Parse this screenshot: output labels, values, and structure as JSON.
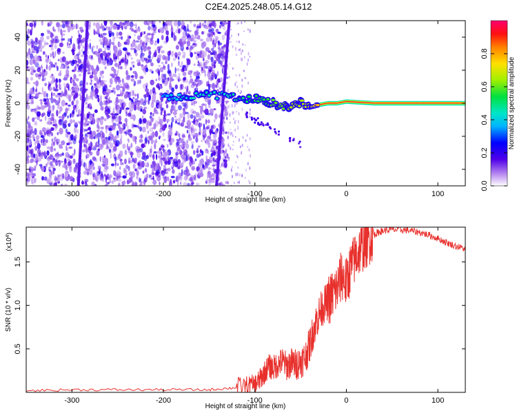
{
  "title": "C2E4.2025.248.05.14.G12",
  "chart_data": [
    {
      "type": "heatmap",
      "name": "spectrogram",
      "xlabel": "Height of straight line (km)",
      "ylabel": "Frequency (Hz)",
      "xlim": [
        -350,
        130
      ],
      "ylim": [
        -50,
        50
      ],
      "xticks": [
        -300,
        -200,
        -100,
        0,
        100
      ],
      "xtick_labels": [
        "-300",
        "-200",
        "-100",
        "0",
        "100"
      ],
      "yticks": [
        -40,
        -20,
        0,
        20,
        40
      ],
      "ytick_labels": [
        "-40",
        "-20",
        "0",
        "20",
        "40"
      ],
      "colorbar": {
        "label": "Normalized spectral amplitude",
        "range": [
          0,
          1
        ],
        "ticks": [
          0,
          0.2,
          0.4,
          0.6,
          0.8
        ],
        "tick_labels": [
          "0.0",
          "0.2",
          "0.4",
          "0.6",
          "0.8"
        ]
      },
      "noise_region": {
        "x": [
          -350,
          -130
        ],
        "density": "high"
      },
      "slanted_lines": [
        {
          "x_start": -293,
          "x_end": -283,
          "y_start": -50,
          "y_end": 50
        },
        {
          "x_start": -142,
          "x_end": -128,
          "y_start": -50,
          "y_end": 50
        }
      ],
      "signal_trace": [
        {
          "x": -200,
          "y": 3,
          "amp": 0.35
        },
        {
          "x": -185,
          "y": 4,
          "amp": 0.4
        },
        {
          "x": -170,
          "y": 4,
          "amp": 0.45
        },
        {
          "x": -150,
          "y": 5,
          "amp": 0.45
        },
        {
          "x": -130,
          "y": 4,
          "amp": 0.45
        },
        {
          "x": -115,
          "y": 3,
          "amp": 0.5
        },
        {
          "x": -100,
          "y": 3,
          "amp": 0.55
        },
        {
          "x": -90,
          "y": 2,
          "amp": 0.55
        },
        {
          "x": -80,
          "y": 0,
          "amp": 0.6
        },
        {
          "x": -70,
          "y": -2,
          "amp": 0.6
        },
        {
          "x": -60,
          "y": -2,
          "amp": 0.65
        },
        {
          "x": -50,
          "y": 0,
          "amp": 0.65
        },
        {
          "x": -40,
          "y": -2,
          "amp": 0.7
        },
        {
          "x": -30,
          "y": -1,
          "amp": 0.8
        },
        {
          "x": -20,
          "y": 0,
          "amp": 0.85
        },
        {
          "x": -10,
          "y": 0,
          "amp": 0.9
        },
        {
          "x": 0,
          "y": 1,
          "amp": 0.92
        },
        {
          "x": 30,
          "y": 0,
          "amp": 0.95
        },
        {
          "x": 80,
          "y": 0,
          "amp": 0.97
        },
        {
          "x": 130,
          "y": 0,
          "amp": 0.97
        }
      ]
    },
    {
      "type": "line",
      "name": "snr",
      "xlabel": "Height of straight line (km)",
      "ylabel": "SNR (10 * v/v)",
      "scale_label": "(x10",
      "scale_exponent": "4",
      "color": "#e8302c",
      "xlim": [
        -350,
        130
      ],
      "ylim": [
        0,
        1.9
      ],
      "xticks": [
        -300,
        -200,
        -100,
        0,
        100
      ],
      "xtick_labels": [
        "-300",
        "-200",
        "-100",
        "0",
        "100"
      ],
      "yticks": [
        0.5,
        1.0,
        1.5
      ],
      "ytick_labels": [
        "0.5",
        "1.0",
        "1.5"
      ],
      "series": [
        {
          "name": "SNR",
          "x": [
            -350,
            -300,
            -250,
            -200,
            -150,
            -125,
            -110,
            -100,
            -95,
            -90,
            -85,
            -80,
            -75,
            -70,
            -65,
            -60,
            -55,
            -50,
            -45,
            -40,
            -35,
            -30,
            -25,
            -20,
            -15,
            -10,
            -5,
            0,
            5,
            10,
            15,
            20,
            25,
            30,
            35,
            40,
            50,
            60,
            70,
            80,
            90,
            100,
            110,
            120,
            130
          ],
          "values": [
            0.02,
            0.03,
            0.03,
            0.03,
            0.03,
            0.05,
            0.07,
            0.09,
            0.14,
            0.22,
            0.3,
            0.28,
            0.32,
            0.36,
            0.3,
            0.34,
            0.32,
            0.35,
            0.4,
            0.55,
            0.75,
            0.9,
            1.0,
            1.05,
            1.12,
            1.2,
            1.35,
            1.25,
            1.45,
            1.55,
            1.65,
            1.7,
            1.76,
            1.81,
            1.84,
            1.86,
            1.87,
            1.87,
            1.86,
            1.84,
            1.81,
            1.77,
            1.72,
            1.68,
            1.65
          ]
        }
      ]
    }
  ]
}
